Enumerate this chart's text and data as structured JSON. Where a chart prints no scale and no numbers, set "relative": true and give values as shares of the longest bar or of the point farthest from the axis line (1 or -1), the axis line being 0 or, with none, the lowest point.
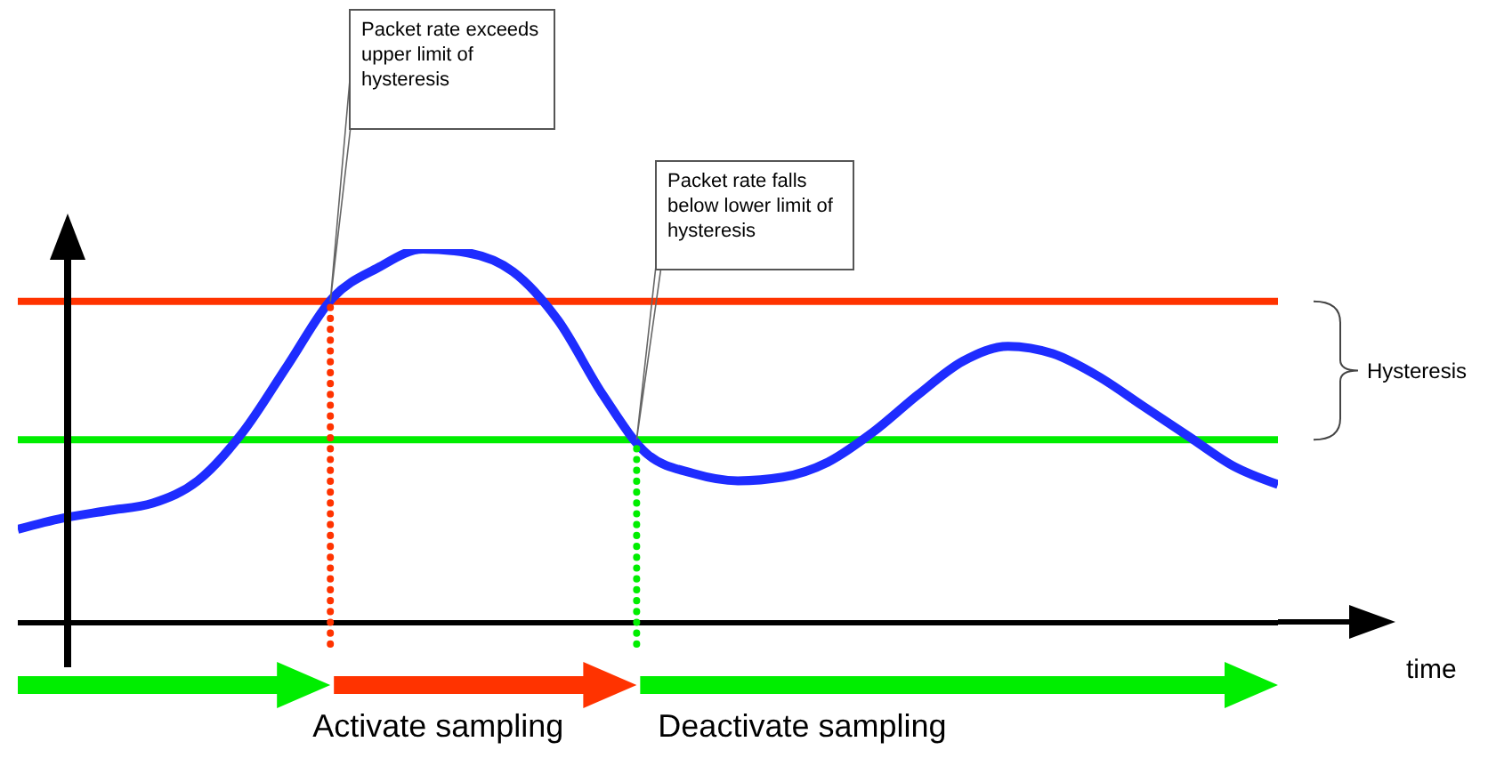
{
  "chart_data": {
    "type": "line",
    "relative": true,
    "xlabel": "time",
    "marker": "none",
    "categories": [
      null,
      null,
      null,
      null,
      null,
      null,
      null,
      null,
      null,
      null,
      null,
      null,
      null,
      null,
      null,
      null,
      null,
      null,
      null,
      null,
      null,
      null,
      null,
      null,
      null,
      null,
      null,
      null,
      null
    ],
    "series": [
      {
        "color": "#1e2cff",
        "values": [
          0.25,
          0.28,
          0.3,
          0.32,
          0.38,
          0.51,
          0.69,
          0.87,
          0.95,
          1,
          0.99,
          0.94,
          0.81,
          0.61,
          0.45,
          0.4,
          0.38,
          0.39,
          0.43,
          0.51,
          0.61,
          0.7,
          0.74,
          0.72,
          0.66,
          0.58,
          0.5,
          0.42,
          0.37
        ]
      }
    ],
    "ref_lines": [
      {
        "axis": "y",
        "value": 0.86,
        "color": "#ff3300"
      },
      {
        "axis": "y",
        "value": 0.49,
        "color": "#00ee00"
      }
    ],
    "annotations": [
      "Packet rate exceeds upper limit of hysteresis",
      "Packet rate falls below lower limit of hysteresis",
      "Hysteresis",
      "Activate sampling",
      "Deactivate sampling"
    ]
  }
}
